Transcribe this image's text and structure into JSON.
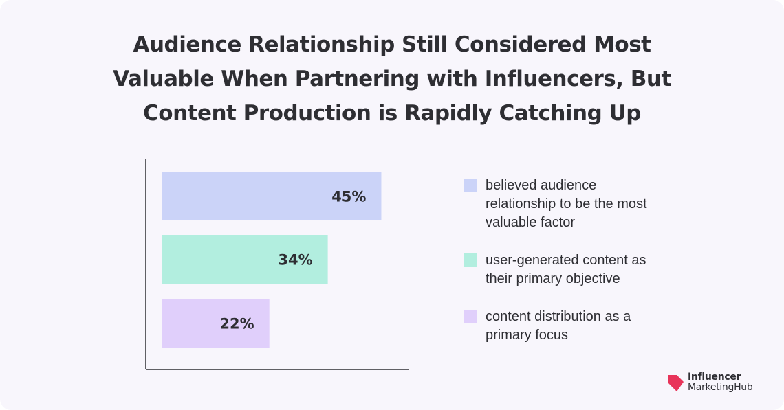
{
  "title": "Audience Relationship Still Considered Most Valuable When Partnering with Influencers, But Content Production is Rapidly Catching Up",
  "chart_data": {
    "type": "bar",
    "orientation": "horizontal",
    "title": "Audience Relationship Still Considered Most Valuable When Partnering with Influencers, But Content Production is Rapidly Catching Up",
    "categories": [
      "believed audience relationship to be the most valuable factor",
      "user-generated content as their primary objective",
      "content distribution as a primary focus"
    ],
    "values": [
      45,
      34,
      22
    ],
    "value_labels": [
      "45%",
      "34%",
      "22%"
    ],
    "colors": [
      "#cbd3f8",
      "#b2eedf",
      "#e0cffb"
    ],
    "xlim": [
      0,
      52
    ],
    "grid": false,
    "legend_position": "right"
  },
  "legend": [
    {
      "label": "believed audience relationship to be the most valuable factor",
      "color": "#cbd3f8"
    },
    {
      "label": "user-generated content as their primary objective",
      "color": "#b2eedf"
    },
    {
      "label": "content distribution as a primary focus",
      "color": "#e0cffb"
    }
  ],
  "logo": {
    "line1": "Influencer",
    "line2": "MarketingHub",
    "color": "#e8345a"
  }
}
